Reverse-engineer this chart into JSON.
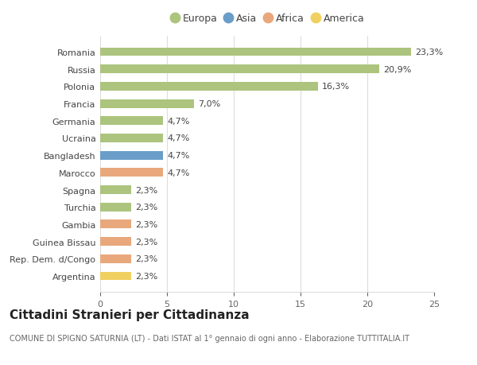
{
  "categories": [
    "Argentina",
    "Rep. Dem. d/Congo",
    "Guinea Bissau",
    "Gambia",
    "Turchia",
    "Spagna",
    "Marocco",
    "Bangladesh",
    "Ucraina",
    "Germania",
    "Francia",
    "Polonia",
    "Russia",
    "Romania"
  ],
  "values": [
    2.3,
    2.3,
    2.3,
    2.3,
    2.3,
    2.3,
    4.7,
    4.7,
    4.7,
    4.7,
    7.0,
    16.3,
    20.9,
    23.3
  ],
  "continents": [
    "America",
    "Africa",
    "Africa",
    "Africa",
    "Europa",
    "Europa",
    "Africa",
    "Asia",
    "Europa",
    "Europa",
    "Europa",
    "Europa",
    "Europa",
    "Europa"
  ],
  "labels": [
    "2,3%",
    "2,3%",
    "2,3%",
    "2,3%",
    "2,3%",
    "2,3%",
    "4,7%",
    "4,7%",
    "4,7%",
    "4,7%",
    "7,0%",
    "16,3%",
    "20,9%",
    "23,3%"
  ],
  "colors": {
    "Europa": "#acc47e",
    "Asia": "#6a9ec9",
    "Africa": "#e8a87c",
    "America": "#f0d060"
  },
  "legend_labels": [
    "Europa",
    "Asia",
    "Africa",
    "America"
  ],
  "legend_colors": [
    "#acc47e",
    "#6a9ec9",
    "#e8a87c",
    "#f0d060"
  ],
  "title": "Cittadini Stranieri per Cittadinanza",
  "subtitle": "COMUNE DI SPIGNO SATURNIA (LT) - Dati ISTAT al 1° gennaio di ogni anno - Elaborazione TUTTITALIA.IT",
  "xlim": [
    0,
    25
  ],
  "xticks": [
    0,
    5,
    10,
    15,
    20,
    25
  ],
  "background_color": "#ffffff",
  "bar_height": 0.5,
  "label_fontsize": 8,
  "tick_fontsize": 8,
  "title_fontsize": 11,
  "subtitle_fontsize": 7
}
